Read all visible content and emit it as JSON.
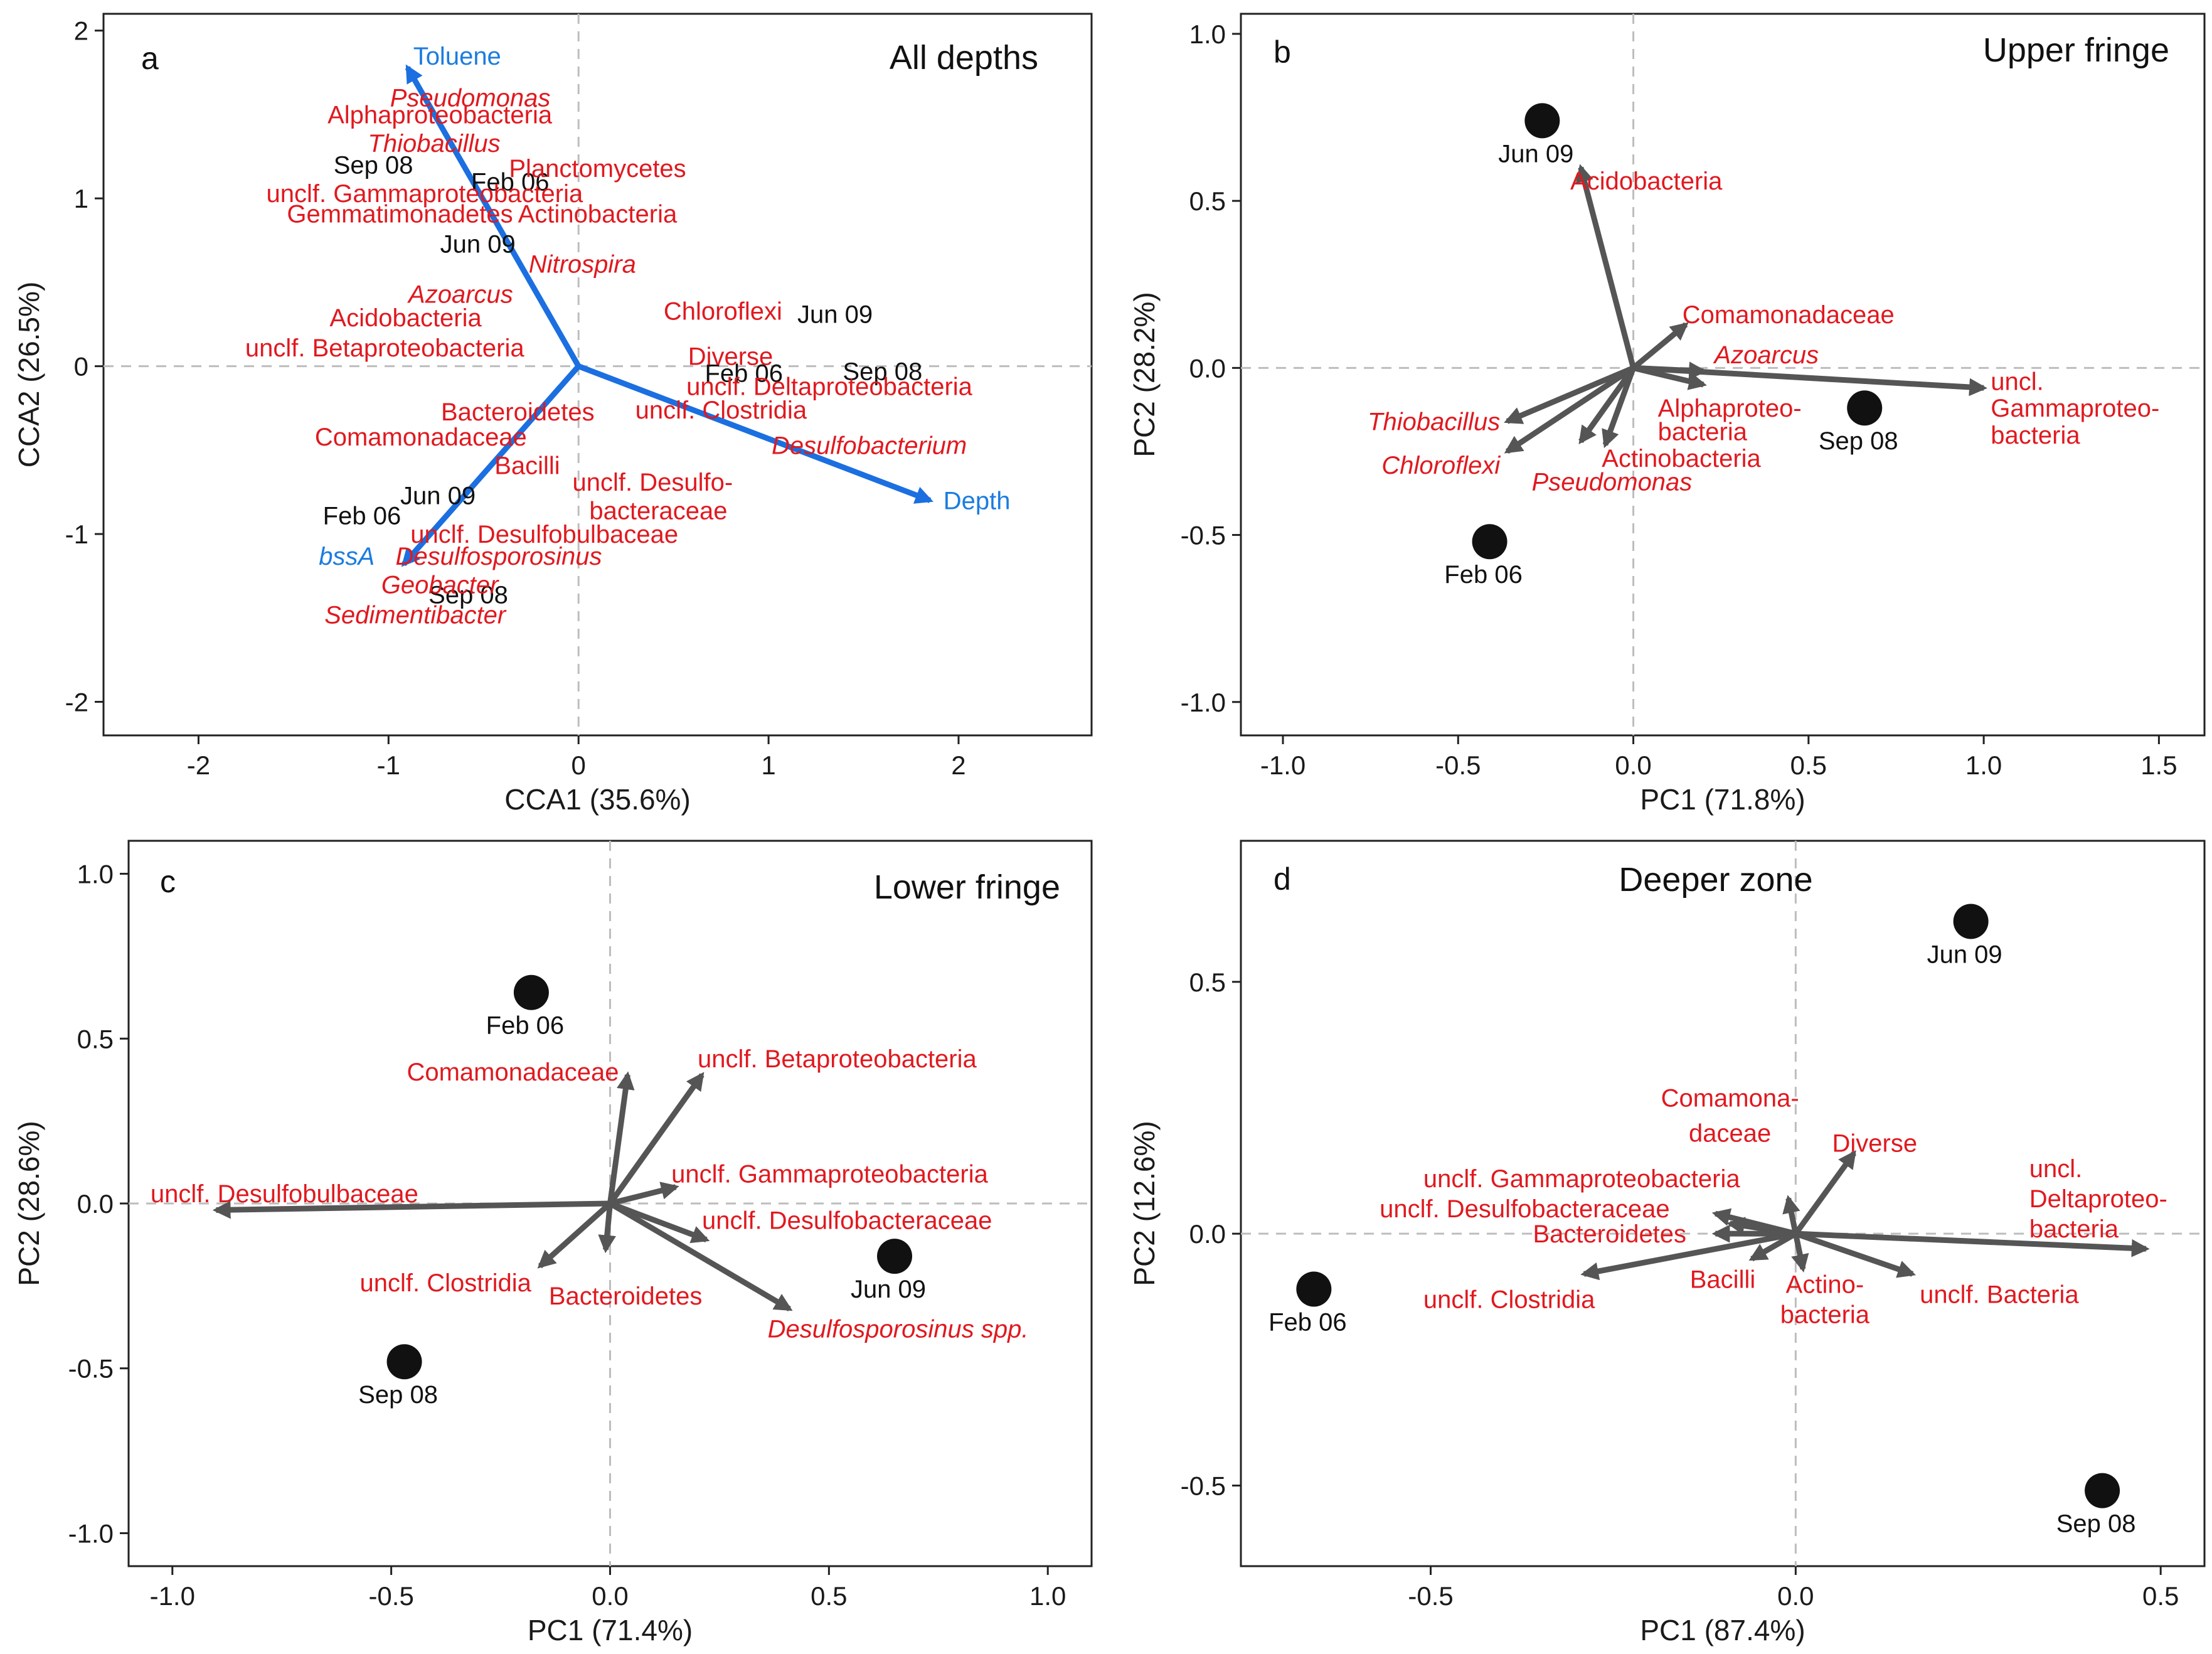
{
  "figure_colors": {
    "species": "#e0191f",
    "env": "#1b7ce0",
    "sample": "#111111",
    "arrow": "#555555",
    "env_arrow": "#1b6fe0",
    "ref": "#bdbdbd"
  },
  "chart_data": [
    {
      "type": "scatter",
      "panel": "a",
      "title": "All depths",
      "xlabel": "CCA1 (35.6%)",
      "ylabel": "CCA2 (26.5%)",
      "xlim": [
        -2.5,
        2.7
      ],
      "ylim": [
        -2.2,
        2.1
      ],
      "xticks": [
        -2,
        -1,
        0,
        1,
        2
      ],
      "yticks": [
        -2,
        -1,
        0,
        1,
        2
      ],
      "arrows": [
        {
          "label": "Toluene",
          "x": -0.9,
          "y": 1.78,
          "kind": "env",
          "italic": false,
          "lx": -0.87,
          "ly": 1.85,
          "anchor": "start"
        },
        {
          "label": "Depth",
          "x": 1.85,
          "y": -0.8,
          "kind": "env",
          "italic": false,
          "lx": 1.92,
          "ly": -0.8,
          "anchor": "start"
        },
        {
          "label": "bssA",
          "x": -0.92,
          "y": -1.18,
          "kind": "env",
          "italic": true,
          "lx": -1.22,
          "ly": -1.13,
          "anchor": "middle"
        }
      ],
      "points": [
        {
          "label": "Sep 08",
          "x": -1.08,
          "y": 1.2,
          "kind": "sample",
          "marker": false
        },
        {
          "label": "Feb 06",
          "x": -0.36,
          "y": 1.1,
          "kind": "sample",
          "marker": false
        },
        {
          "label": "Jun 09",
          "x": -0.53,
          "y": 0.73,
          "kind": "sample",
          "marker": false
        },
        {
          "label": "Jun 09",
          "x": 1.35,
          "y": 0.31,
          "kind": "sample",
          "marker": false
        },
        {
          "label": "Feb 06",
          "x": 0.87,
          "y": -0.04,
          "kind": "sample",
          "marker": false
        },
        {
          "label": "Sep 08",
          "x": 1.6,
          "y": -0.03,
          "kind": "sample",
          "marker": false
        },
        {
          "label": "Jun 09",
          "x": -0.74,
          "y": -0.77,
          "kind": "sample",
          "marker": false
        },
        {
          "label": "Feb 06",
          "x": -1.14,
          "y": -0.89,
          "kind": "sample",
          "marker": false
        },
        {
          "label": "Sep 08",
          "x": -0.58,
          "y": -1.36,
          "kind": "sample",
          "marker": false
        },
        {
          "label": "Pseudomonas",
          "x": -0.57,
          "y": 1.6,
          "kind": "species",
          "italic": true
        },
        {
          "label": "Alphaproteobacteria",
          "x": -0.73,
          "y": 1.5,
          "kind": "species",
          "italic": false
        },
        {
          "label": "Thiobacillus",
          "x": -0.76,
          "y": 1.33,
          "kind": "species",
          "italic": true
        },
        {
          "label": "Planctomycetes",
          "x": 0.1,
          "y": 1.18,
          "kind": "species",
          "italic": false
        },
        {
          "label": "unclf. Gammaproteobacteria",
          "x": -0.81,
          "y": 1.03,
          "kind": "species",
          "italic": false
        },
        {
          "label": "Gemmatimonadetes",
          "x": -0.94,
          "y": 0.91,
          "kind": "species",
          "italic": false
        },
        {
          "label": "Actinobacteria",
          "x": 0.1,
          "y": 0.91,
          "kind": "species",
          "italic": false
        },
        {
          "label": "Nitrospira",
          "x": 0.02,
          "y": 0.61,
          "kind": "species",
          "italic": true
        },
        {
          "label": "Azoarcus",
          "x": -0.62,
          "y": 0.43,
          "kind": "species",
          "italic": true
        },
        {
          "label": "Acidobacteria",
          "x": -0.91,
          "y": 0.29,
          "kind": "species",
          "italic": false
        },
        {
          "label": "unclf. Betaproteobacteria",
          "x": -1.02,
          "y": 0.11,
          "kind": "species",
          "italic": false
        },
        {
          "label": "Chloroflexi",
          "x": 0.76,
          "y": 0.33,
          "kind": "species",
          "italic": false
        },
        {
          "label": "Diverse",
          "x": 0.8,
          "y": 0.06,
          "kind": "species",
          "italic": false
        },
        {
          "label": "unclf. Deltaproteobacteria",
          "x": 1.32,
          "y": -0.12,
          "kind": "species",
          "italic": false
        },
        {
          "label": "unclf. Clostridia",
          "x": 0.75,
          "y": -0.26,
          "kind": "species",
          "italic": false
        },
        {
          "label": "Desulfobacterium",
          "x": 1.53,
          "y": -0.47,
          "kind": "species",
          "italic": true
        },
        {
          "label": "Bacteroidetes",
          "x": -0.32,
          "y": -0.27,
          "kind": "species",
          "italic": false
        },
        {
          "label": "Comamonadaceae",
          "x": -0.83,
          "y": -0.42,
          "kind": "species",
          "italic": false
        },
        {
          "label": "Bacilli",
          "x": -0.27,
          "y": -0.59,
          "kind": "species",
          "italic": false
        },
        {
          "label": "unclf. Desulfo-",
          "x": 0.39,
          "y": -0.69,
          "kind": "species",
          "italic": false
        },
        {
          "label": "bacteraceae",
          "x": 0.42,
          "y": -0.86,
          "kind": "species",
          "italic": false
        },
        {
          "label": "unclf. Desulfobulbaceae",
          "x": -0.18,
          "y": -1.0,
          "kind": "species",
          "italic": false
        },
        {
          "label": "Desulfosporosinus",
          "x": -0.42,
          "y": -1.13,
          "kind": "species",
          "italic": true
        },
        {
          "label": "Geobacter",
          "x": -0.73,
          "y": -1.3,
          "kind": "species",
          "italic": true
        },
        {
          "label": "Sedimentibacter",
          "x": -0.86,
          "y": -1.48,
          "kind": "species",
          "italic": true
        }
      ]
    },
    {
      "type": "scatter",
      "panel": "b",
      "title": "Upper fringe",
      "xlabel": "PC1 (71.8%)",
      "ylabel": "PC2 (28.2%)",
      "xlim": [
        -1.12,
        1.63
      ],
      "ylim": [
        -1.1,
        1.06
      ],
      "xticks": [
        -1.0,
        -0.5,
        0.0,
        0.5,
        1.0,
        1.5
      ],
      "yticks": [
        -1.0,
        -0.5,
        0.0,
        0.5,
        1.0
      ],
      "arrows": [
        {
          "label": "Acidobacteria",
          "x": -0.15,
          "y": 0.6,
          "kind": "species",
          "italic": false,
          "lx": -0.18,
          "ly": 0.56,
          "anchor": "start"
        },
        {
          "label": "Comamonadaceae",
          "x": 0.15,
          "y": 0.13,
          "kind": "species",
          "italic": false,
          "lx": 0.14,
          "ly": 0.16,
          "anchor": "start"
        },
        {
          "label": "Azoarcus",
          "x": 0.2,
          "y": -0.01,
          "kind": "species",
          "italic": true,
          "lx": 0.38,
          "ly": 0.04,
          "anchor": "middle"
        },
        {
          "label": "uncl.",
          "x": 1.0,
          "y": -0.06,
          "kind": "species",
          "italic": false,
          "lx": 1.02,
          "ly": -0.04,
          "anchor": "start"
        },
        {
          "label": "Gammaproteo-",
          "x": null,
          "y": null,
          "kind": "text",
          "italic": false,
          "lx": 1.02,
          "ly": -0.12,
          "anchor": "start"
        },
        {
          "label": "bacteria",
          "x": null,
          "y": null,
          "kind": "text",
          "italic": false,
          "lx": 1.02,
          "ly": -0.2,
          "anchor": "start"
        },
        {
          "label": "Thiobacillus",
          "x": -0.36,
          "y": -0.16,
          "kind": "species",
          "italic": true,
          "lx": -0.38,
          "ly": -0.16,
          "anchor": "end"
        },
        {
          "label": "Chloroflexi",
          "x": -0.36,
          "y": -0.25,
          "kind": "species",
          "italic": true,
          "lx": -0.38,
          "ly": -0.29,
          "anchor": "end"
        },
        {
          "label": "Alphaproteo-",
          "x": 0.2,
          "y": -0.05,
          "kind": "species",
          "italic": false,
          "lx": 0.07,
          "ly": -0.12,
          "anchor": "start"
        },
        {
          "label": "bacteria",
          "x": null,
          "y": null,
          "kind": "text",
          "italic": false,
          "lx": 0.07,
          "ly": -0.19,
          "anchor": "start"
        },
        {
          "label": "Actinobacteria",
          "x": -0.08,
          "y": -0.23,
          "kind": "species",
          "italic": false,
          "lx": -0.09,
          "ly": -0.27,
          "anchor": "start"
        },
        {
          "label": "Pseudomonas",
          "x": -0.15,
          "y": -0.22,
          "kind": "species",
          "italic": true,
          "lx": -0.29,
          "ly": -0.34,
          "anchor": "start"
        }
      ],
      "points": [
        {
          "label": "Jun 09",
          "x": -0.26,
          "y": 0.74,
          "kind": "sample",
          "marker": true
        },
        {
          "label": "Sep 08",
          "x": 0.66,
          "y": -0.12,
          "kind": "sample",
          "marker": true
        },
        {
          "label": "Feb 06",
          "x": -0.41,
          "y": -0.52,
          "kind": "sample",
          "marker": true
        }
      ]
    },
    {
      "type": "scatter",
      "panel": "c",
      "title": "Lower fringe",
      "xlabel": "PC1 (71.4%)",
      "ylabel": "PC2 (28.6%)",
      "xlim": [
        -1.1,
        1.1
      ],
      "ylim": [
        -1.1,
        1.1
      ],
      "xticks": [
        -1.0,
        -0.5,
        0.0,
        0.5,
        1.0
      ],
      "yticks": [
        -1.0,
        -0.5,
        0.0,
        0.5,
        1.0
      ],
      "arrows": [
        {
          "label": "Comamonadaceae",
          "x": 0.04,
          "y": 0.39,
          "kind": "species",
          "italic": false,
          "lx": 0.02,
          "ly": 0.4,
          "anchor": "end"
        },
        {
          "label": "unclf. Betaproteobacteria",
          "x": 0.21,
          "y": 0.39,
          "kind": "species",
          "italic": false,
          "lx": 0.2,
          "ly": 0.44,
          "anchor": "start"
        },
        {
          "label": "unclf. Gammaproteobacteria",
          "x": 0.15,
          "y": 0.05,
          "kind": "species",
          "italic": false,
          "lx": 0.14,
          "ly": 0.09,
          "anchor": "start"
        },
        {
          "label": "unclf. Desulfobacteraceae",
          "x": 0.22,
          "y": -0.11,
          "kind": "species",
          "italic": false,
          "lx": 0.21,
          "ly": -0.05,
          "anchor": "start"
        },
        {
          "label": "unclf. Desulfobulbaceae",
          "x": -0.9,
          "y": -0.02,
          "kind": "species",
          "italic": false,
          "lx": -1.05,
          "ly": 0.03,
          "anchor": "start"
        },
        {
          "label": "unclf. Clostridia",
          "x": -0.16,
          "y": -0.19,
          "kind": "species",
          "italic": false,
          "lx": -0.18,
          "ly": -0.24,
          "anchor": "end"
        },
        {
          "label": "Bacteroidetes",
          "x": -0.01,
          "y": -0.14,
          "kind": "species",
          "italic": false,
          "lx": -0.14,
          "ly": -0.28,
          "anchor": "start"
        },
        {
          "label": "Desulfosporosinus spp.",
          "x": 0.41,
          "y": -0.32,
          "kind": "species",
          "italic": true,
          "lx": 0.36,
          "ly": -0.38,
          "anchor": "start"
        }
      ],
      "points": [
        {
          "label": "Feb 06",
          "x": -0.18,
          "y": 0.64,
          "kind": "sample",
          "marker": true
        },
        {
          "label": "Jun 09",
          "x": 0.65,
          "y": -0.16,
          "kind": "sample",
          "marker": true
        },
        {
          "label": "Sep 08",
          "x": -0.47,
          "y": -0.48,
          "kind": "sample",
          "marker": true
        }
      ]
    },
    {
      "type": "scatter",
      "panel": "d",
      "title": "Deeper zone",
      "xlabel": "PC1 (87.4%)",
      "ylabel": "PC2 (12.6%)",
      "xlim": [
        -0.76,
        0.56
      ],
      "ylim": [
        -0.66,
        0.78
      ],
      "xticks": [
        -0.5,
        0.0,
        0.5
      ],
      "yticks": [
        -0.5,
        0.0,
        0.5
      ],
      "arrows": [
        {
          "label": "Comamona-",
          "x": -0.01,
          "y": 0.07,
          "kind": "species",
          "italic": false,
          "lx": -0.09,
          "ly": 0.27,
          "anchor": "middle"
        },
        {
          "label": "daceae",
          "x": null,
          "y": null,
          "kind": "text",
          "italic": false,
          "lx": -0.09,
          "ly": 0.2,
          "anchor": "middle"
        },
        {
          "label": "Diverse",
          "x": 0.08,
          "y": 0.16,
          "kind": "species",
          "italic": false,
          "lx": 0.05,
          "ly": 0.18,
          "anchor": "start"
        },
        {
          "label": "uncl.",
          "x": 0.48,
          "y": -0.03,
          "kind": "species",
          "italic": false,
          "lx": 0.32,
          "ly": 0.13,
          "anchor": "start"
        },
        {
          "label": "Deltaproteo-",
          "x": null,
          "y": null,
          "kind": "text",
          "italic": false,
          "lx": 0.32,
          "ly": 0.07,
          "anchor": "start"
        },
        {
          "label": "bacteria",
          "x": null,
          "y": null,
          "kind": "text",
          "italic": false,
          "lx": 0.32,
          "ly": 0.01,
          "anchor": "start"
        },
        {
          "label": "unclf. Gammaproteobacteria",
          "x": -0.11,
          "y": 0.04,
          "kind": "species",
          "italic": false,
          "lx": -0.51,
          "ly": 0.11,
          "anchor": "start"
        },
        {
          "label": "unclf. Desulfobacteraceae",
          "x": -0.09,
          "y": 0.02,
          "kind": "species",
          "italic": false,
          "lx": -0.57,
          "ly": 0.05,
          "anchor": "start"
        },
        {
          "label": "Bacteroidetes",
          "x": -0.11,
          "y": 0.0,
          "kind": "species",
          "italic": false,
          "lx": -0.36,
          "ly": 0.0,
          "anchor": "start"
        },
        {
          "label": "unclf. Clostridia",
          "x": -0.29,
          "y": -0.08,
          "kind": "species",
          "italic": false,
          "lx": -0.51,
          "ly": -0.13,
          "anchor": "start"
        },
        {
          "label": "Bacilli",
          "x": -0.06,
          "y": -0.05,
          "kind": "species",
          "italic": false,
          "lx": -0.1,
          "ly": -0.09,
          "anchor": "middle"
        },
        {
          "label": "Actino-",
          "x": 0.01,
          "y": -0.07,
          "kind": "species",
          "italic": false,
          "lx": 0.04,
          "ly": -0.1,
          "anchor": "middle"
        },
        {
          "label": "bacteria",
          "x": null,
          "y": null,
          "kind": "text",
          "italic": false,
          "lx": 0.04,
          "ly": -0.16,
          "anchor": "middle"
        },
        {
          "label": "unclf. Bacteria",
          "x": 0.16,
          "y": -0.08,
          "kind": "species",
          "italic": false,
          "lx": 0.17,
          "ly": -0.12,
          "anchor": "start"
        }
      ],
      "points": [
        {
          "label": "Jun 09",
          "x": 0.24,
          "y": 0.62,
          "kind": "sample",
          "marker": true
        },
        {
          "label": "Feb 06",
          "x": -0.66,
          "y": -0.11,
          "kind": "sample",
          "marker": true
        },
        {
          "label": "Sep 08",
          "x": 0.42,
          "y": -0.51,
          "kind": "sample",
          "marker": true
        }
      ]
    }
  ]
}
